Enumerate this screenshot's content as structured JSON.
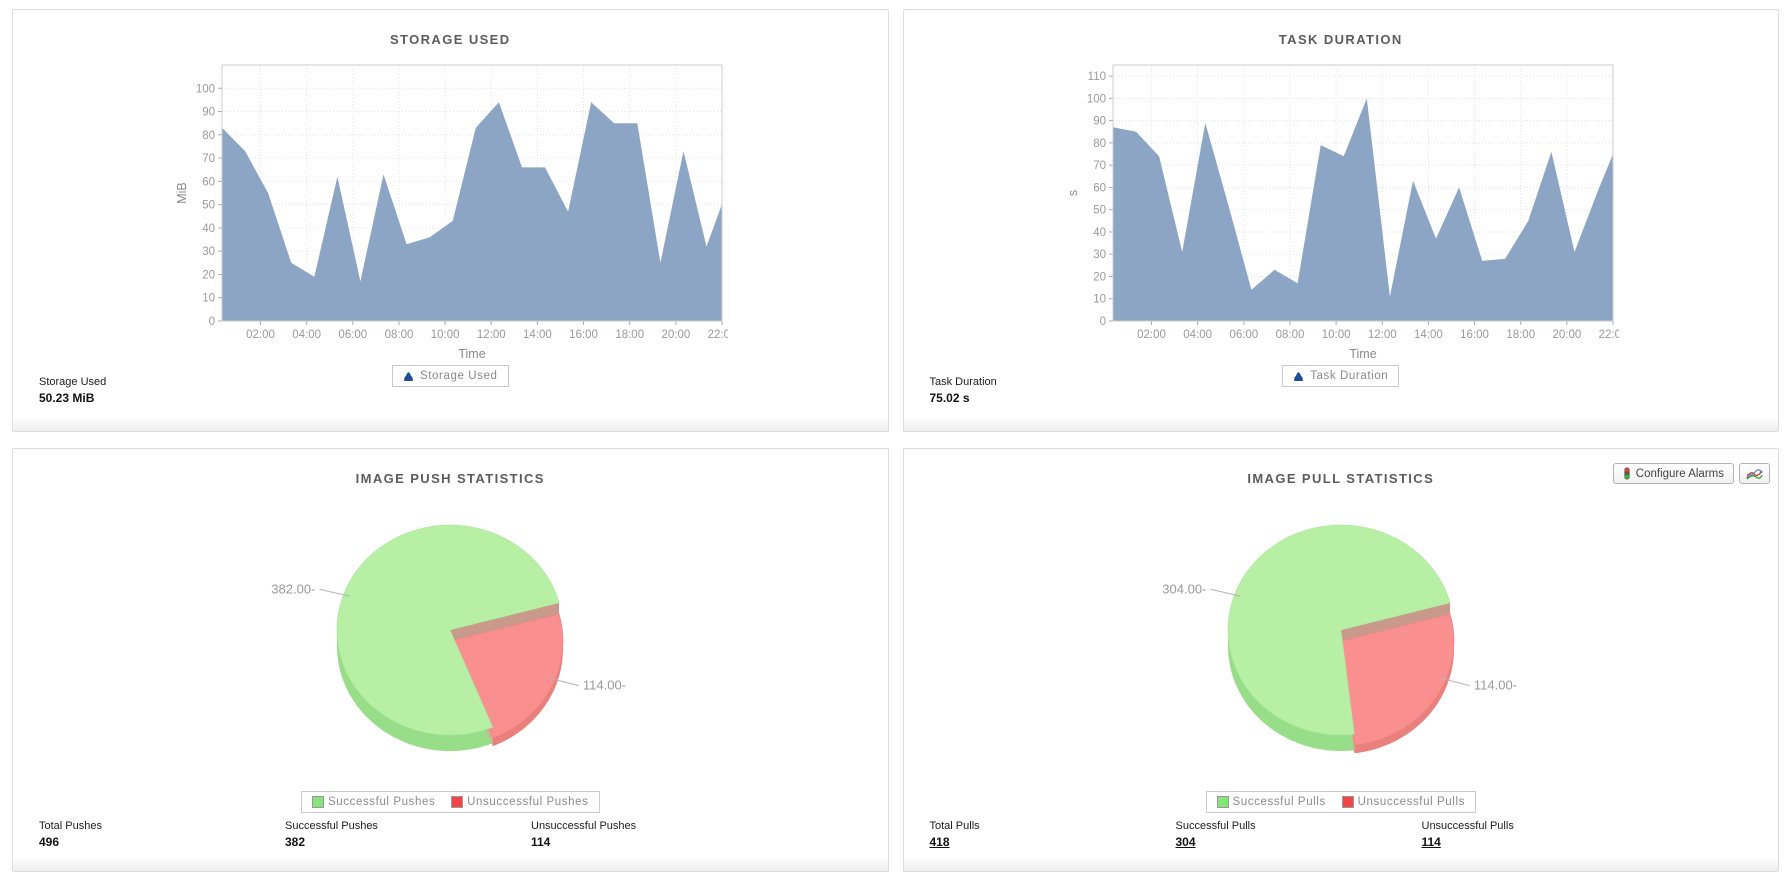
{
  "actions": {
    "configure_alarms_label": "Configure Alarms"
  },
  "chart_data": [
    {
      "type": "area",
      "title": "STORAGE USED",
      "xlabel": "Time",
      "ylabel": "MiB",
      "legend": "Storage Used",
      "series_color": "#8ca5c5",
      "x": [
        0.33,
        1.33,
        2.33,
        3.33,
        4.33,
        5.33,
        6.33,
        7.33,
        8.33,
        9.33,
        10.33,
        11.33,
        12.33,
        13.33,
        14.33,
        15.33,
        16.33,
        17.33,
        18.33,
        19.33,
        20.33,
        21.33,
        22
      ],
      "y": [
        83,
        73,
        55,
        25,
        19,
        62,
        17,
        63,
        33,
        36,
        43,
        83,
        94,
        66,
        66,
        47,
        94,
        85,
        85,
        25,
        73,
        32,
        50.23
      ],
      "xlim": [
        0.33,
        22
      ],
      "ylim": [
        0,
        110
      ],
      "yticks": [
        0,
        10,
        20,
        30,
        40,
        50,
        60,
        70,
        80,
        90,
        100
      ],
      "xticks": [
        2,
        4,
        6,
        8,
        10,
        12,
        14,
        16,
        18,
        20,
        22
      ],
      "xtick_labels": [
        "02:00",
        "04:00",
        "06:00",
        "08:00",
        "10:00",
        "12:00",
        "14:00",
        "16:00",
        "18:00",
        "20:00",
        "22:00"
      ],
      "grid": true,
      "legend_position": "bottom",
      "footer": {
        "label": "Storage Used",
        "value": "50.23 MiB"
      }
    },
    {
      "type": "area",
      "title": "TASK DURATION",
      "xlabel": "Time",
      "ylabel": "s",
      "legend": "Task Duration",
      "series_color": "#8ca5c5",
      "x": [
        0.33,
        1.33,
        2.33,
        3.33,
        4.33,
        5.33,
        6.33,
        7.33,
        8.33,
        9.33,
        10.33,
        11.33,
        12.33,
        13.33,
        14.33,
        15.33,
        16.33,
        17.33,
        18.33,
        19.33,
        20.33,
        21.33,
        22
      ],
      "y": [
        87,
        85,
        74,
        31,
        89,
        52,
        14,
        23,
        17,
        79,
        74,
        100,
        11,
        63,
        37,
        60,
        27,
        28,
        45,
        76,
        31,
        58,
        75.02
      ],
      "xlim": [
        0.33,
        22
      ],
      "ylim": [
        0,
        115
      ],
      "yticks": [
        0,
        10,
        20,
        30,
        40,
        50,
        60,
        70,
        80,
        90,
        100,
        110
      ],
      "xticks": [
        2,
        4,
        6,
        8,
        10,
        12,
        14,
        16,
        18,
        20,
        22
      ],
      "xtick_labels": [
        "02:00",
        "04:00",
        "06:00",
        "08:00",
        "10:00",
        "12:00",
        "14:00",
        "16:00",
        "18:00",
        "20:00",
        "22:00"
      ],
      "grid": true,
      "legend_position": "bottom",
      "footer": {
        "label": "Task Duration",
        "value": "75.02 s"
      }
    },
    {
      "type": "pie",
      "title": "IMAGE PUSH STATISTICS",
      "slices": [
        {
          "name": "Successful Pushes",
          "value": 382,
          "callout": "382.00-"
        },
        {
          "name": "Unsuccessful Pushes",
          "value": 114,
          "callout": "114.00-"
        }
      ],
      "colors": {
        "success_top": "#b7f0a5",
        "success_rim": "#98dd88",
        "fail_top": "#f98f8f",
        "fail_rim": "#e9807c",
        "wall_upper": "#c9998c",
        "wall_lower": "#c6bd8e",
        "legend_success": "#86e577",
        "legend_fail": "#f24646"
      },
      "legend_position": "bottom",
      "stats": [
        {
          "label": "Total Pushes",
          "value": "496",
          "link": false
        },
        {
          "label": "Successful Pushes",
          "value": "382",
          "link": false
        },
        {
          "label": "Unsuccessful Pushes",
          "value": "114",
          "link": false
        }
      ]
    },
    {
      "type": "pie",
      "title": "IMAGE PULL STATISTICS",
      "slices": [
        {
          "name": "Successful Pulls",
          "value": 304,
          "callout": "304.00-"
        },
        {
          "name": "Unsuccessful Pulls",
          "value": 114,
          "callout": "114.00-"
        }
      ],
      "colors": {
        "success_top": "#b7f0a5",
        "success_rim": "#98dd88",
        "fail_top": "#f98f8f",
        "fail_rim": "#e9807c",
        "wall_upper": "#c9998c",
        "wall_lower": "#c6bd8e",
        "legend_success": "#86e577",
        "legend_fail": "#f24646"
      },
      "legend_position": "bottom",
      "stats": [
        {
          "label": "Total Pulls",
          "value": "418",
          "link": true
        },
        {
          "label": "Successful Pulls",
          "value": "304",
          "link": true
        },
        {
          "label": "Unsuccessful Pulls",
          "value": "114",
          "link": true
        }
      ]
    }
  ],
  "icons": {
    "area_series_marker_color": "#1f4e96"
  }
}
